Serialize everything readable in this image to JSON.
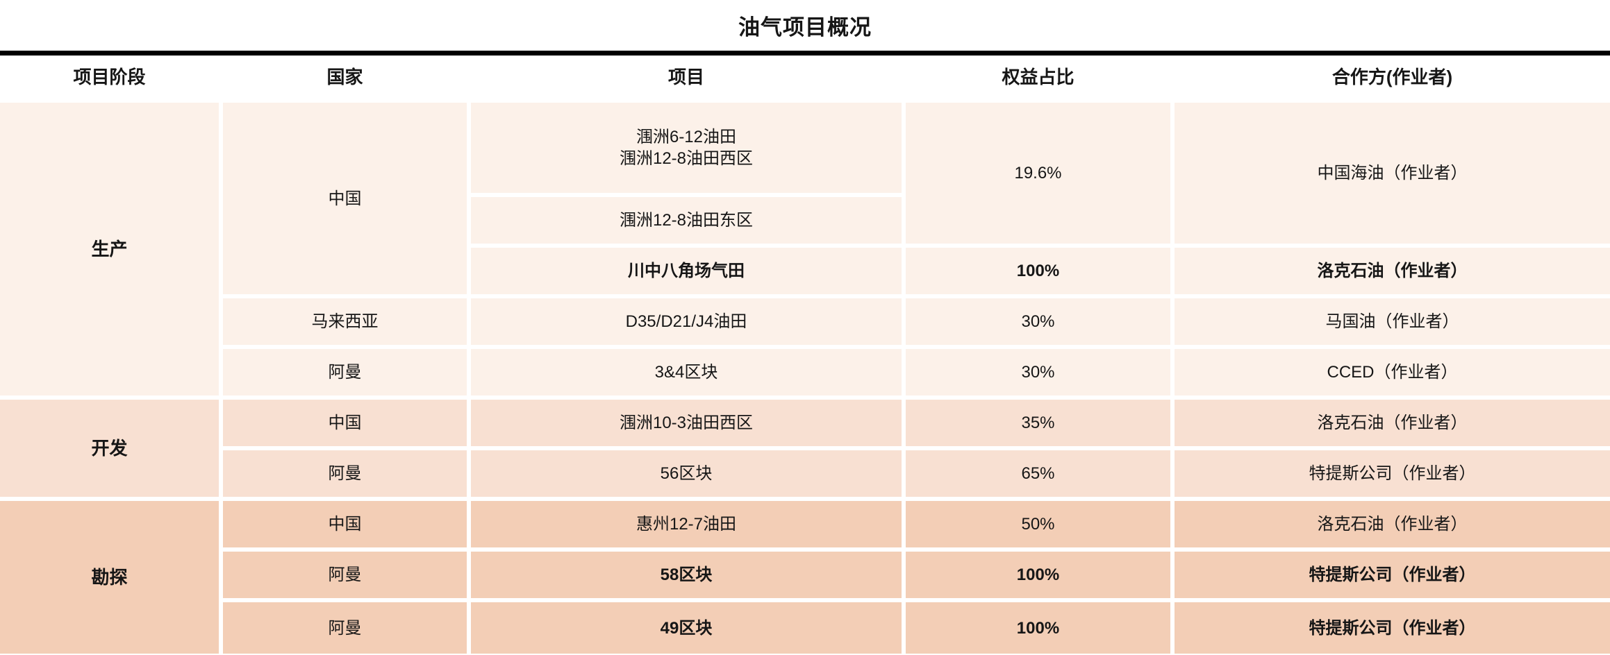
{
  "title": "油气项目概况",
  "columns": {
    "stage": "项目阶段",
    "country": "国家",
    "project": "项目",
    "equity": "权益占比",
    "partner": "合作方(作业者)"
  },
  "stages": {
    "production": "生产",
    "development": "开发",
    "exploration": "勘探"
  },
  "rows": [
    {
      "stage": "生产",
      "country": "中国",
      "project_line1": "涠洲6-12油田",
      "project_line2": "涠洲12-8油田西区",
      "equity": "19.6%",
      "partner": "中国海油（作业者）"
    },
    {
      "project": "涠洲12-8油田东区"
    },
    {
      "project": "川中八角场气田",
      "equity": "100%",
      "partner": "洛克石油（作业者）"
    },
    {
      "country": "马来西亚",
      "project": "D35/D21/J4油田",
      "equity": "30%",
      "partner": "马国油（作业者）"
    },
    {
      "country": "阿曼",
      "project": "3&4区块",
      "equity": "30%",
      "partner": "CCED（作业者）"
    },
    {
      "stage": "开发",
      "country": "中国",
      "project": "涠洲10-3油田西区",
      "equity": "35%",
      "partner": "洛克石油（作业者）"
    },
    {
      "country": "阿曼",
      "project": "56区块",
      "equity": "65%",
      "partner": "特提斯公司（作业者）"
    },
    {
      "stage": "勘探",
      "country": "中国",
      "project": "惠州12-7油田",
      "equity": "50%",
      "partner": "洛克石油（作业者）"
    },
    {
      "country": "阿曼",
      "project": "58区块",
      "equity": "100%",
      "partner": "特提斯公司（作业者）"
    },
    {
      "country": "阿曼",
      "project": "49区块",
      "equity": "100%",
      "partner": "特提斯公司（作业者）"
    }
  ],
  "colors": {
    "production_row_bg": "#fcf1e9",
    "development_row_bg": "#f8e0d2",
    "exploration_row_bg": "#f3ceb6",
    "top_rule": "#000000",
    "text": "#161616"
  }
}
